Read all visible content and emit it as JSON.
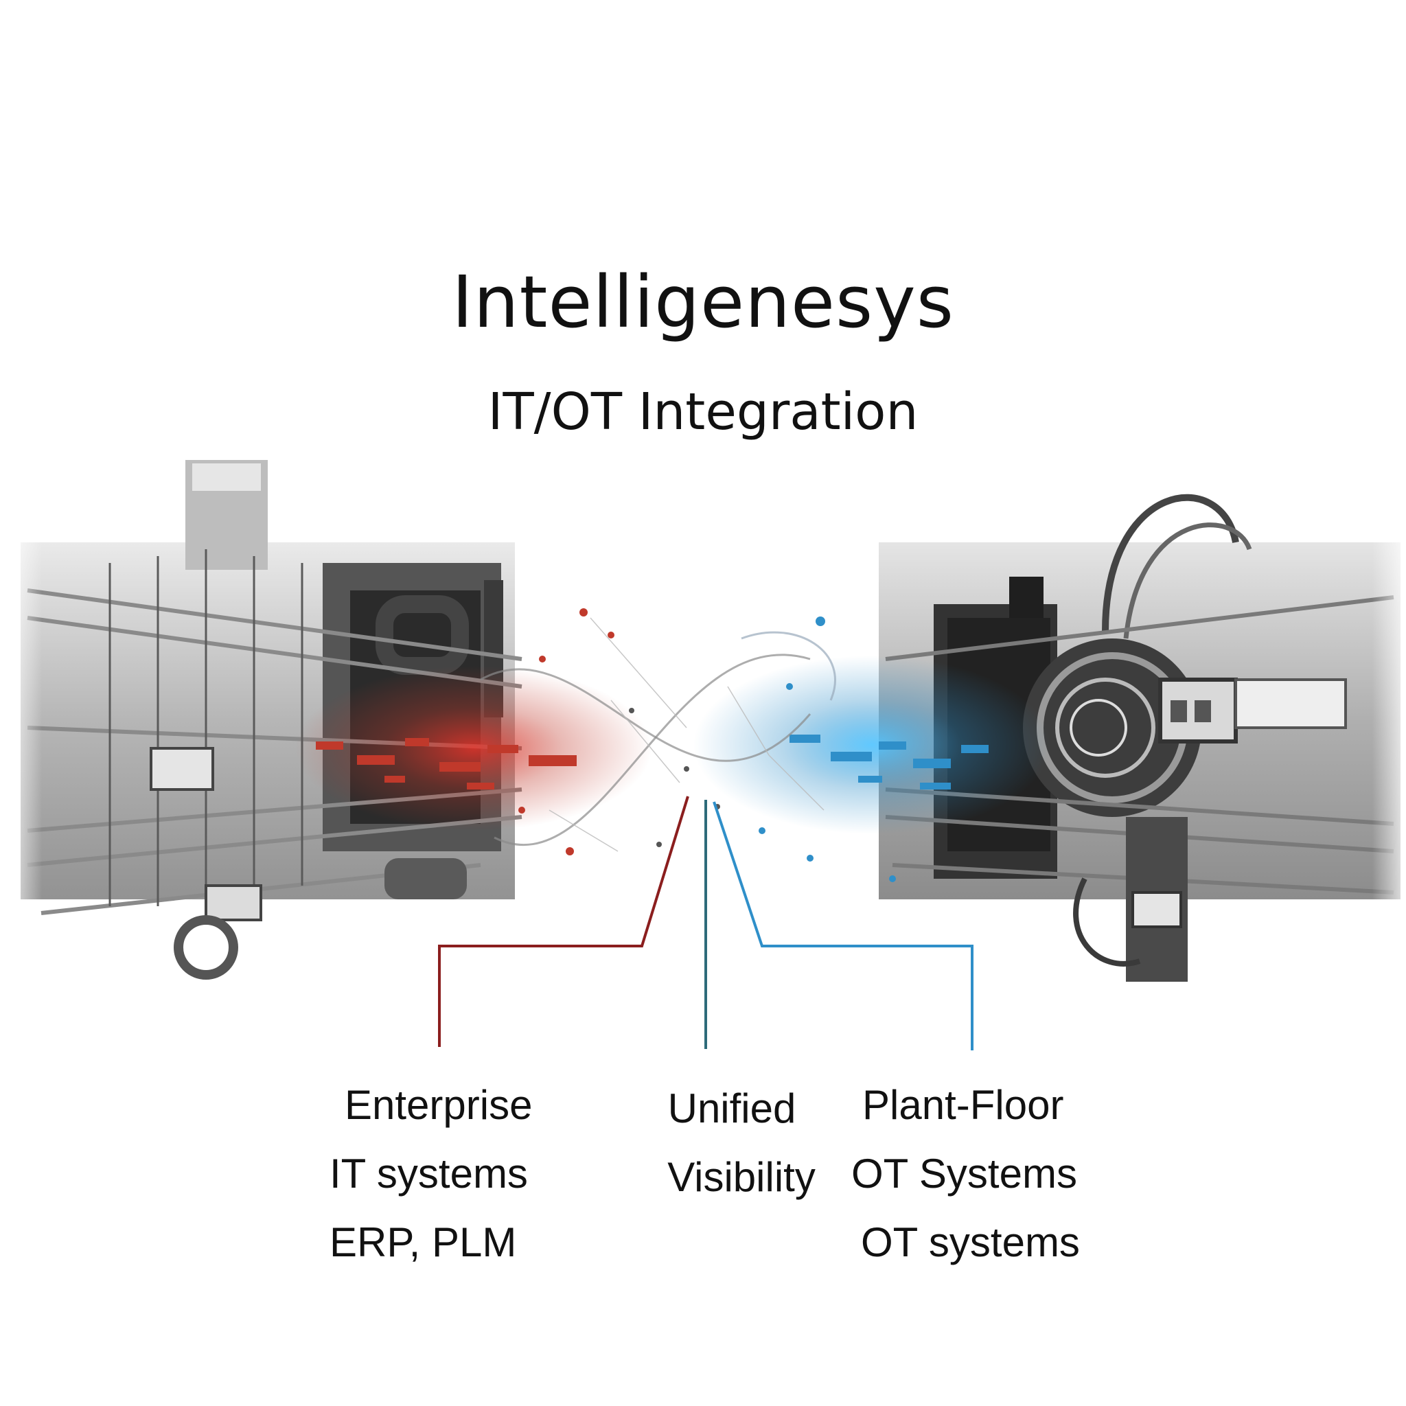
{
  "header": {
    "title": "Intelligenesys",
    "subtitle": "IT/OT Integration"
  },
  "columns": {
    "left": {
      "line1": "Enterprise",
      "line2": "IT systems",
      "line3": "ERP, PLM"
    },
    "middle": {
      "line1": "Unified",
      "line2": "Visibility"
    },
    "right": {
      "line1": "Plant-Floor",
      "line2": "OT Systems",
      "line3": "OT systems"
    }
  },
  "colors": {
    "it_accent": "#c0392b",
    "unified_accent": "#2e6b7a",
    "ot_accent": "#2f8fc9"
  },
  "icons": {
    "left": "industrial-machinery-it-icon",
    "right": "industrial-machinery-ot-icon",
    "center": "network-mesh-icon"
  }
}
